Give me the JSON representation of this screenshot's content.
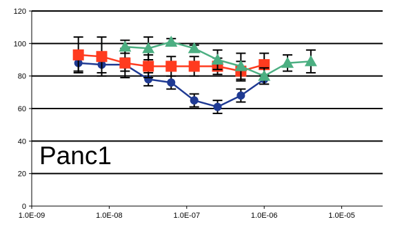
{
  "chart_data": {
    "type": "scatter",
    "x_scale": "log",
    "xlim": [
      "1.0E-09",
      "1.0E-05"
    ],
    "ylim": [
      0,
      120
    ],
    "grid": true,
    "legend": "none",
    "annotation": "Panc1",
    "x_ticks": [
      "1.0E-09",
      "1.0E-08",
      "1.0E-07",
      "1.0E-06",
      "1.0E-05"
    ],
    "y_ticks": [
      "0",
      "20",
      "40",
      "60",
      "80",
      "100",
      "120"
    ],
    "series": [
      {
        "marker": "circle",
        "color": "#1f3a93",
        "x": [
          "4.0E-09",
          "8.0E-09",
          "1.6E-08",
          "3.2E-08",
          "6.3E-08",
          "1.25E-07",
          "2.5E-07",
          "5.0E-07",
          "1.0E-06"
        ],
        "y": [
          88,
          87,
          87,
          78,
          76,
          65,
          61,
          68,
          78
        ],
        "err": [
          5,
          5,
          4,
          4,
          4,
          4,
          4,
          4,
          3
        ]
      },
      {
        "marker": "square",
        "color": "#ff3b1f",
        "x": [
          "4.0E-09",
          "8.0E-09",
          "1.6E-08",
          "3.2E-08",
          "6.3E-08",
          "1.25E-07",
          "2.5E-07",
          "5.0E-07",
          "1.0E-06"
        ],
        "y": [
          93,
          92,
          88,
          86,
          86,
          86,
          86,
          83,
          87
        ],
        "err": [
          11,
          12,
          9,
          7,
          6,
          6,
          5,
          6,
          7
        ]
      },
      {
        "marker": "triangle",
        "color": "#4caf82",
        "x": [
          "1.6E-08",
          "3.2E-08",
          "6.3E-08",
          "1.25E-07",
          "2.5E-07",
          "5.0E-07",
          "1.0E-06",
          "2.0E-06",
          "4.0E-06"
        ],
        "y": [
          98,
          97,
          101,
          97,
          90,
          86,
          80,
          88,
          89
        ],
        "err": [
          4,
          7,
          2,
          2,
          6,
          8,
          5,
          5,
          7
        ]
      }
    ]
  }
}
